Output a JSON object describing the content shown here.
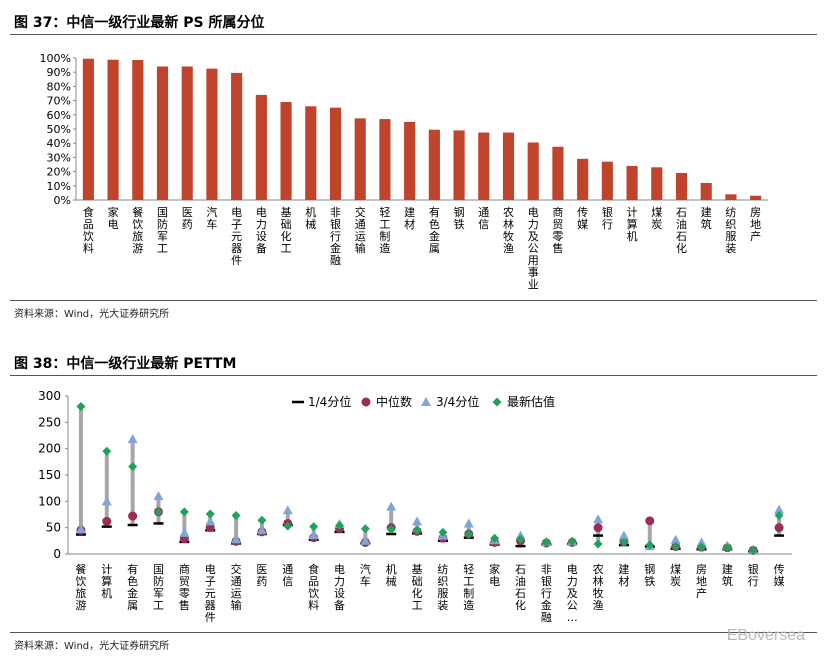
{
  "fig37": {
    "title": "图 37：中信一级行业最新 PS 所属分位",
    "source": "资料来源：Wind，光大证券研究所"
  },
  "fig38": {
    "title": "图 38：中信一级行业最新 PETTM",
    "source": "资料来源：Wind，光大证券研究所"
  },
  "watermark": "EBoversea",
  "colors": {
    "bar": "#c0432b",
    "q1": "#000000",
    "median": "#9b2d5b",
    "q3": "#7ea5d3",
    "latest": "#1fa35b",
    "range": "#a6a6a6"
  },
  "chart_data": [
    {
      "type": "bar",
      "title": "图 37：中信一级行业最新 PS 所属分位",
      "categories": [
        "食品饮料",
        "家电",
        "餐饮旅游",
        "国防军工",
        "医药",
        "汽车",
        "电子元器件",
        "电力设备",
        "基础化工",
        "机械",
        "非银行金融",
        "交通运输",
        "轻工制造",
        "建材",
        "有色金属",
        "钢铁",
        "通信",
        "农林牧渔",
        "电力及公用事业",
        "商贸零售",
        "传媒",
        "银行",
        "计算机",
        "煤炭",
        "石油石化",
        "建筑",
        "纺织服装",
        "房地产"
      ],
      "values": [
        99.5,
        98.8,
        98.6,
        94,
        94,
        92.5,
        89.5,
        74,
        69,
        66,
        65,
        57.5,
        57,
        55,
        49.5,
        49,
        47.5,
        47.5,
        40.5,
        37.5,
        29,
        27,
        24,
        23,
        19,
        12,
        4,
        3
      ],
      "ylim": [
        0,
        100
      ],
      "yticks": [
        "0%",
        "10%",
        "20%",
        "30%",
        "40%",
        "50%",
        "60%",
        "70%",
        "80%",
        "90%",
        "100%"
      ],
      "xlabel": "",
      "ylabel": ""
    },
    {
      "type": "scatter",
      "title": "图 38：中信一级行业最新 PETTM",
      "categories": [
        "餐饮旅游",
        "计算机",
        "有色金属",
        "国防军工",
        "商贸零售",
        "电子元器件",
        "交通运输",
        "医药",
        "通信",
        "食品饮料",
        "电力设备",
        "汽车",
        "机械",
        "基础化工",
        "纺织服装",
        "轻工制造",
        "家电",
        "石油石化",
        "非银行金融",
        "电力及公…",
        "农林牧渔",
        "建材",
        "钢铁",
        "煤炭",
        "房地产",
        "建筑",
        "银行",
        "传媒"
      ],
      "ylim": [
        0,
        300
      ],
      "yticks": [
        "0",
        "50",
        "100",
        "150",
        "200",
        "250",
        "300"
      ],
      "legend": [
        "1/4分位",
        "中位数",
        "3/4分位",
        "最新估值"
      ],
      "legend_position": "top",
      "series": [
        {
          "name": "1/4分位",
          "values": [
            37,
            52,
            55,
            58,
            23,
            45,
            20,
            38,
            55,
            27,
            42,
            20,
            38,
            39,
            25,
            31,
            18,
            15,
            18,
            19,
            35,
            17,
            14,
            10,
            9,
            9,
            5,
            35
          ]
        },
        {
          "name": "中位数",
          "values": [
            45,
            62,
            72,
            80,
            29,
            50,
            24,
            42,
            58,
            31,
            48,
            22,
            50,
            43,
            30,
            38,
            22,
            25,
            21,
            22,
            50,
            23,
            63,
            14,
            13,
            12,
            7,
            50
          ]
        },
        {
          "name": "3/4分位",
          "values": [
            47,
            100,
            218,
            110,
            40,
            62,
            28,
            45,
            83,
            36,
            57,
            25,
            90,
            62,
            35,
            58,
            26,
            35,
            23,
            24,
            66,
            35,
            15,
            27,
            22,
            16,
            8,
            84
          ]
        },
        {
          "name": "最新估值",
          "values": [
            280,
            195,
            166,
            80,
            80,
            76,
            73,
            64,
            53,
            52,
            54,
            48,
            47,
            45,
            41,
            38,
            30,
            28,
            22,
            24,
            19,
            22,
            17,
            14,
            13,
            12,
            7,
            73
          ]
        }
      ]
    }
  ]
}
